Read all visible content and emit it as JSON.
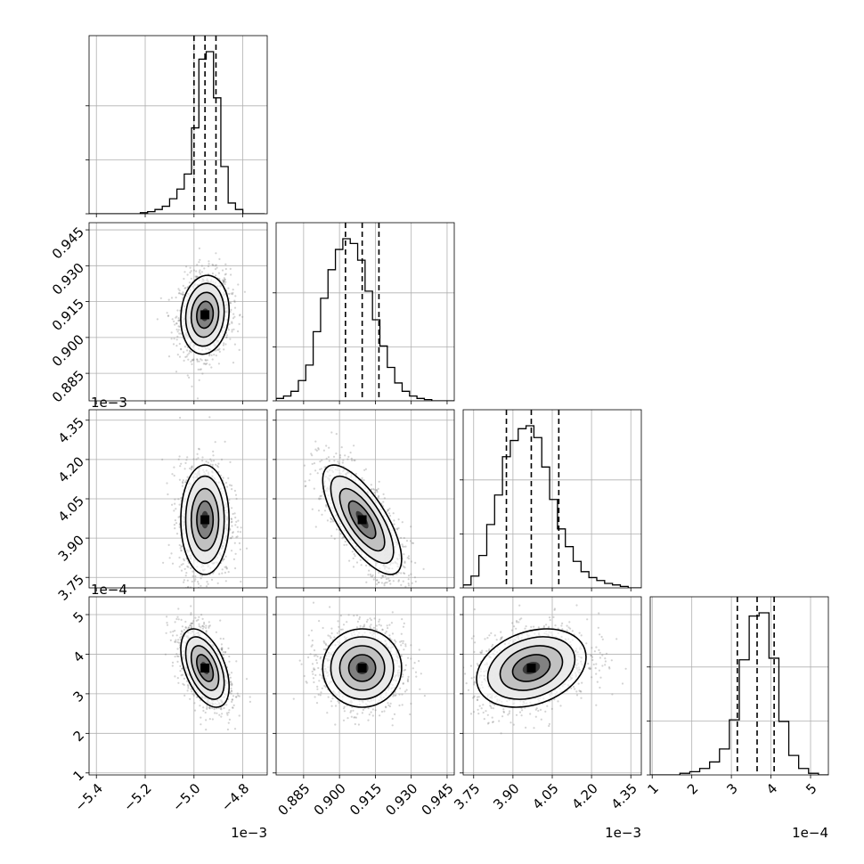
{
  "chart_data": {
    "type": "corner",
    "grid": true,
    "quantile_line_style": "dashed",
    "scatter_color": "#808080",
    "density_colormap": [
      "#ffffff",
      "#000000"
    ],
    "parameters": [
      {
        "range": [
          -5.43,
          -4.7
        ],
        "ticks": [
          -5.4,
          -5.2,
          -5.0,
          -4.8
        ],
        "tick_labels": [
          "−5.4",
          "−5.2",
          "−5.0",
          "−4.8"
        ],
        "offset": "1e−3",
        "quantiles": [
          -5.0,
          -4.955,
          -4.91
        ],
        "hist_edges": [
          -5.43,
          -5.4,
          -5.37,
          -5.34,
          -5.31,
          -5.28,
          -5.25,
          -5.22,
          -5.19,
          -5.16,
          -5.13,
          -5.1,
          -5.07,
          -5.04,
          -5.01,
          -4.98,
          -4.95,
          -4.92,
          -4.89,
          -4.86,
          -4.83,
          -4.8,
          -4.77,
          -4.74,
          -4.71
        ],
        "hist_counts": [
          0,
          0,
          0,
          0,
          0,
          0,
          0,
          1,
          2,
          4,
          7,
          14,
          23,
          37,
          80,
          144,
          151,
          108,
          44,
          10,
          4,
          0,
          0,
          0
        ],
        "center": -4.955,
        "sigma": 0.045
      },
      {
        "range": [
          0.8735,
          0.948
        ],
        "ticks": [
          0.885,
          0.9,
          0.915,
          0.93,
          0.945
        ],
        "tick_labels": [
          "0.885",
          "0.900",
          "0.915",
          "0.930",
          "0.945"
        ],
        "offset": "",
        "quantiles": [
          0.9025,
          0.9095,
          0.9165
        ],
        "hist_edges": [
          0.8735,
          0.8766,
          0.8797,
          0.8828,
          0.8859,
          0.889,
          0.8921,
          0.8952,
          0.8983,
          0.9014,
          0.9045,
          0.9076,
          0.9107,
          0.9138,
          0.9169,
          0.92,
          0.9231,
          0.9262,
          0.9293,
          0.9324,
          0.9355,
          0.9386,
          0.9417,
          0.9448,
          0.9479
        ],
        "hist_counts": [
          2,
          4,
          8,
          17,
          30,
          58,
          86,
          110,
          127,
          136,
          132,
          118,
          92,
          68,
          46,
          28,
          15,
          8,
          4,
          2,
          1,
          0,
          0,
          0
        ],
        "center": 0.9095,
        "sigma": 0.0075
      },
      {
        "range": [
          3.71,
          4.39
        ],
        "ticks": [
          3.75,
          3.9,
          4.05,
          4.2,
          4.35
        ],
        "tick_labels": [
          "3.75",
          "3.90",
          "4.05",
          "4.20",
          "4.35"
        ],
        "offset": "1e−3",
        "quantiles": [
          3.875,
          3.97,
          4.075
        ],
        "hist_edges": [
          3.71,
          3.74,
          3.77,
          3.8,
          3.83,
          3.86,
          3.89,
          3.92,
          3.95,
          3.98,
          4.01,
          4.04,
          4.07,
          4.1,
          4.13,
          4.16,
          4.19,
          4.22,
          4.25,
          4.28,
          4.31,
          4.34,
          4.37,
          4.39
        ],
        "hist_counts": [
          2,
          8,
          22,
          43,
          63,
          89,
          100,
          108,
          110,
          102,
          82,
          60,
          40,
          28,
          18,
          11,
          7,
          5,
          3,
          2,
          1,
          0,
          0
        ],
        "center": 3.97,
        "sigma": 0.095
      },
      {
        "range": [
          0.95,
          5.45
        ],
        "ticks": [
          1,
          2,
          3,
          4,
          5
        ],
        "tick_labels": [
          "1",
          "2",
          "3",
          "4",
          "5"
        ],
        "offset": "1e−4",
        "quantiles": [
          3.15,
          3.65,
          4.08
        ],
        "hist_edges": [
          0.95,
          1.2,
          1.45,
          1.7,
          1.95,
          2.2,
          2.45,
          2.7,
          2.95,
          3.2,
          3.45,
          3.7,
          3.95,
          4.2,
          4.45,
          4.7,
          4.95,
          5.2,
          5.45
        ],
        "hist_counts": [
          0,
          0,
          0,
          1,
          2,
          4,
          8,
          16,
          34,
          71,
          98,
          100,
          72,
          33,
          12,
          4,
          1,
          0
        ],
        "center": 3.65,
        "sigma": 0.45
      }
    ],
    "correlations": {
      "1-0": 0.1,
      "2-0": 0.0,
      "2-1": -0.72,
      "3-0": -0.48,
      "3-1": 0.0,
      "3-2": 0.28
    }
  }
}
